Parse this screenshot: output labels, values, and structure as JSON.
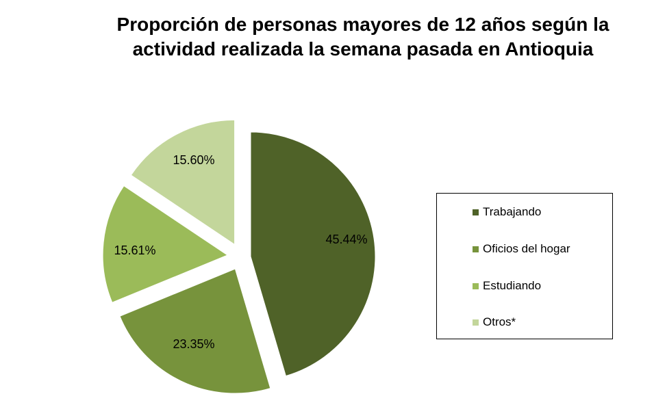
{
  "chart_data": {
    "type": "pie",
    "title_lines": [
      "Proporción de personas mayores de 12 años según la",
      "actividad realizada la semana pasada en Antioquia"
    ],
    "slices": [
      {
        "label": "Trabajando",
        "value": 45.44,
        "value_label": "45.44%",
        "color": "#4f6228",
        "exploded": false
      },
      {
        "label": "Oficios del hogar",
        "value": 23.35,
        "value_label": "23.35%",
        "color": "#77933c",
        "exploded": true
      },
      {
        "label": "Estudiando",
        "value": 15.61,
        "value_label": "15.61%",
        "color": "#9bbb59",
        "exploded": true
      },
      {
        "label": "Otros*",
        "value": 15.6,
        "value_label": "15.60%",
        "color": "#c3d69b",
        "exploded": true
      }
    ],
    "legend_position": "right"
  }
}
